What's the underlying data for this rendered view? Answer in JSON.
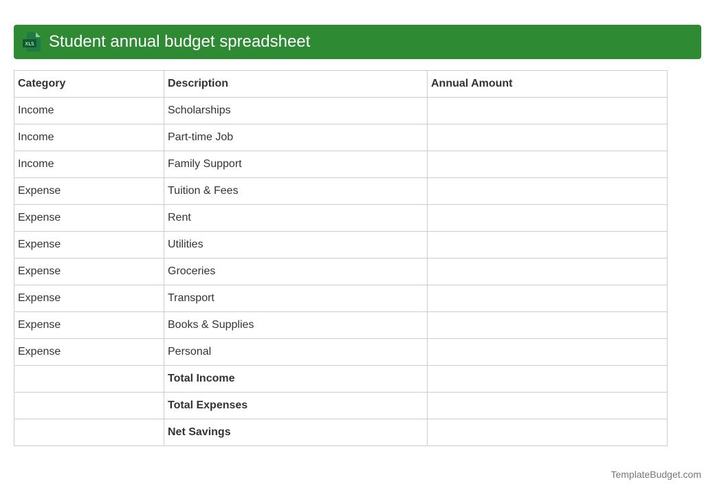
{
  "header": {
    "title": "Student annual budget spreadsheet",
    "icon": "xls-file-icon",
    "icon_label": "XLS",
    "bar_color": "#2e8a33"
  },
  "table": {
    "columns": [
      "Category",
      "Description",
      "Annual Amount"
    ],
    "rows": [
      {
        "category": "Income",
        "description": "Scholarships",
        "amount": ""
      },
      {
        "category": "Income",
        "description": "Part-time Job",
        "amount": ""
      },
      {
        "category": "Income",
        "description": "Family Support",
        "amount": ""
      },
      {
        "category": "Expense",
        "description": "Tuition & Fees",
        "amount": ""
      },
      {
        "category": "Expense",
        "description": "Rent",
        "amount": ""
      },
      {
        "category": "Expense",
        "description": "Utilities",
        "amount": ""
      },
      {
        "category": "Expense",
        "description": "Groceries",
        "amount": ""
      },
      {
        "category": "Expense",
        "description": "Transport",
        "amount": ""
      },
      {
        "category": "Expense",
        "description": "Books & Supplies",
        "amount": ""
      },
      {
        "category": "Expense",
        "description": "Personal",
        "amount": ""
      }
    ],
    "totals": [
      {
        "category": "",
        "description": "Total Income",
        "amount": ""
      },
      {
        "category": "",
        "description": "Total Expenses",
        "amount": ""
      },
      {
        "category": "",
        "description": "Net Savings",
        "amount": ""
      }
    ]
  },
  "footer": {
    "brand": "TemplateBudget.com"
  }
}
